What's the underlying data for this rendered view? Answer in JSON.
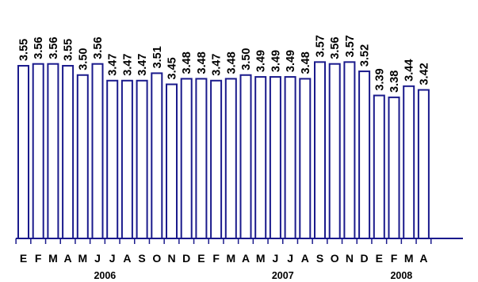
{
  "chart_data": {
    "type": "bar",
    "title": "",
    "xlabel": "",
    "ylabel": "",
    "categories": [
      "E",
      "F",
      "M",
      "A",
      "M",
      "J",
      "J",
      "A",
      "S",
      "O",
      "N",
      "D",
      "E",
      "F",
      "M",
      "A",
      "M",
      "J",
      "J",
      "A",
      "S",
      "O",
      "N",
      "D",
      "E",
      "F",
      "M",
      "A"
    ],
    "values": [
      3.55,
      3.56,
      3.56,
      3.55,
      3.5,
      3.56,
      3.47,
      3.47,
      3.47,
      3.51,
      3.45,
      3.48,
      3.48,
      3.47,
      3.48,
      3.5,
      3.49,
      3.49,
      3.49,
      3.48,
      3.57,
      3.56,
      3.57,
      3.52,
      3.39,
      3.38,
      3.44,
      3.42
    ],
    "value_labels": [
      "3.55",
      "3.56",
      "3.56",
      "3.55",
      "3.50",
      "3.56",
      "3.47",
      "3.47",
      "3.47",
      "3.51",
      "3.45",
      "3.48",
      "3.48",
      "3.47",
      "3.48",
      "3.50",
      "3.49",
      "3.49",
      "3.49",
      "3.48",
      "3.57",
      "3.56",
      "3.57",
      "3.52",
      "3.39",
      "3.38",
      "3.44",
      "3.42"
    ],
    "year_groups": [
      {
        "label": "2006",
        "start": 0,
        "end": 11
      },
      {
        "label": "2007",
        "start": 12,
        "end": 23
      },
      {
        "label": "2008",
        "start": 24,
        "end": 27
      }
    ],
    "ylim": [
      2.62,
      3.58
    ],
    "grid": false,
    "legend": "none",
    "colors": {
      "bar_fill": "#ffffff",
      "bar_stroke": "#1a1a8c",
      "text": "#000000"
    }
  }
}
